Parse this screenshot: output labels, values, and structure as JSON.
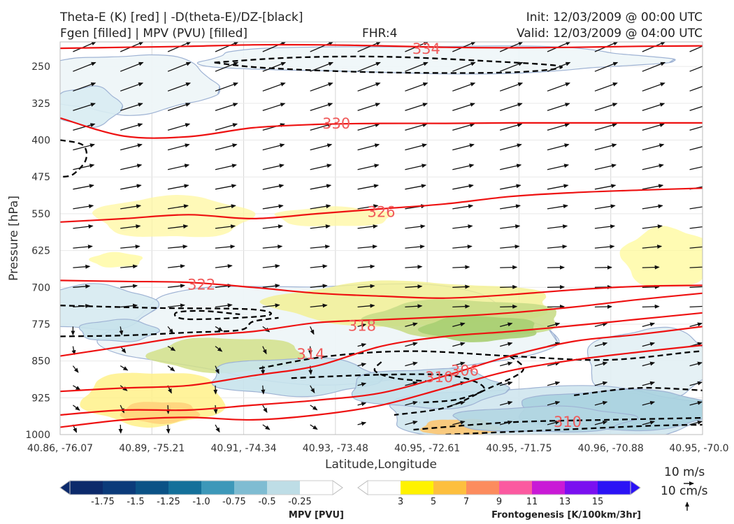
{
  "header": {
    "title_line1": "Theta-E (K) [red] | -D(theta-E)/DZ-[black]",
    "title_line2": "Fgen [filled] | MPV (PVU) [filled]",
    "fhr": "FHR:4",
    "init": "Init: 12/03/2009 @ 00:00 UTC",
    "valid": "Valid: 12/03/2009 @ 04:00 UTC"
  },
  "chart_data": {
    "type": "cross-section",
    "xlabel": "Latitude,Longitude",
    "ylabel": "Pressure [hPa]",
    "x_ticks": [
      "40.86, -76.07",
      "40.89, -75.21",
      "40.91, -74.34",
      "40.93, -73.48",
      "40.95, -72.61",
      "40.95, -71.75",
      "40.96, -70.88",
      "40.95, -70.0"
    ],
    "y_ticks": [
      250,
      325,
      400,
      475,
      550,
      625,
      700,
      775,
      850,
      925,
      1000
    ],
    "ylim": [
      1000,
      200
    ],
    "grid": true,
    "theta_e_contours": [
      {
        "label": "334",
        "pressure_profile": [
          213,
          211,
          209,
          206,
          206,
          208,
          211,
          212,
          211,
          209,
          208
        ]
      },
      {
        "label": "330",
        "pressure_profile": [
          355,
          392,
          393,
          375,
          368,
          366,
          366,
          365,
          365,
          365,
          365
        ]
      },
      {
        "label": "326",
        "pressure_profile": [
          567,
          560,
          552,
          560,
          550,
          540,
          530,
          515,
          507,
          502,
          498
        ]
      },
      {
        "label": "322",
        "pressure_profile": [
          686,
          688,
          690,
          700,
          712,
          718,
          722,
          715,
          705,
          698,
          696
        ]
      },
      {
        "label": "318",
        "pressure_profile": [
          840,
          820,
          800,
          790,
          772,
          766,
          760,
          752,
          740,
          725,
          712
        ]
      },
      {
        "label": "314",
        "pressure_profile": [
          912,
          905,
          900,
          880,
          860,
          820,
          800,
          790,
          778,
          765,
          752
        ]
      },
      {
        "label": "310",
        "pressure_profile": [
          960,
          950,
          950,
          940,
          930,
          915,
          880,
          840,
          810,
          796,
          780
        ]
      },
      {
        "label": "306",
        "pressure_profile": [
          985,
          970,
          965,
          970,
          960,
          940,
          905,
          870,
          848,
          832,
          818
        ]
      }
    ],
    "contour_labels": [
      {
        "text": "334",
        "x": 0.57,
        "p": 213
      },
      {
        "text": "330",
        "x": 0.43,
        "p": 365
      },
      {
        "text": "326",
        "x": 0.5,
        "p": 545
      },
      {
        "text": "322",
        "x": 0.22,
        "p": 693
      },
      {
        "text": "318",
        "x": 0.47,
        "p": 777
      },
      {
        "text": "314",
        "x": 0.39,
        "p": 835
      },
      {
        "text": "310",
        "x": 0.59,
        "p": 882
      },
      {
        "text": "306",
        "x": 0.63,
        "p": 868
      },
      {
        "text": "310",
        "x": 0.79,
        "p": 973
      }
    ],
    "mpv_colorbar": {
      "title": "MPV [PVU]",
      "ticks": [
        "-1.75",
        "-1.5",
        "-1.25",
        "-1.0",
        "-0.75",
        "-0.5",
        "-0.25"
      ],
      "colors": [
        "#0c2a6b",
        "#0b3b7a",
        "#0b5286",
        "#14709a",
        "#3d98b9",
        "#7fbcd2",
        "#bedde6",
        "#ffffff"
      ]
    },
    "fgen_colorbar": {
      "title": "Frontogenesis [K/100km/3hr]",
      "ticks": [
        "3",
        "5",
        "7",
        "9",
        "11",
        "13",
        "15"
      ],
      "colors": [
        "#ffffff",
        "#fff200",
        "#fdbf3e",
        "#fc8c5e",
        "#fb5aa0",
        "#c91ad6",
        "#7a10f0",
        "#2b13f5"
      ]
    },
    "wind_reference": {
      "horizontal": "10 m/s",
      "vertical": "10 cm/s"
    }
  }
}
